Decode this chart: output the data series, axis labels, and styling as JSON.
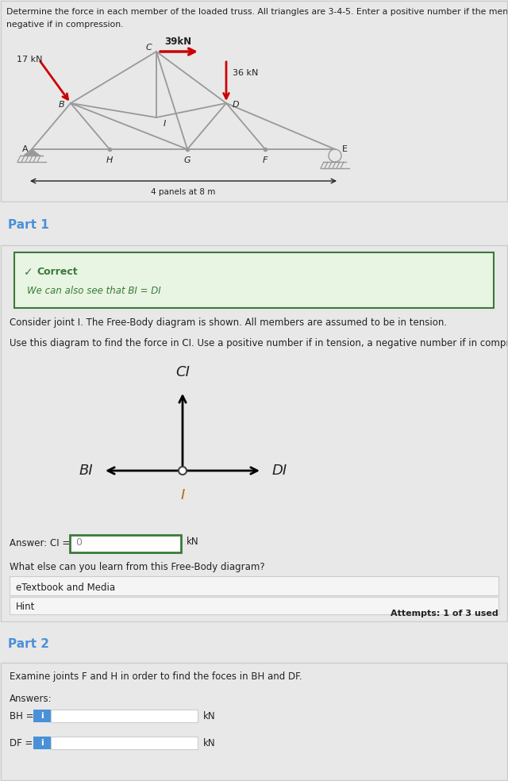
{
  "bg_color": "#e8e8e8",
  "white": "#ffffff",
  "panel_border": "#cccccc",
  "part_header_bg": "#e0e0e0",
  "part_color": "#4a90d9",
  "correct_bg": "#e8f5e2",
  "correct_border": "#3a7a3a",
  "correct_green": "#3a7a3a",
  "input_border": "#3a7a3a",
  "blue_btn": "#4a90d9",
  "dark_text": "#222222",
  "gray_text": "#888888",
  "truss_color": "#888888",
  "truss_line": "#999999",
  "arrow_red": "#cc0000",
  "header_text_line1": "Determine the force in each member of the loaded truss. All triangles are 3-4-5. Enter a positive number if the member is in tension,",
  "header_text_line2": "negative if in compression.",
  "part1_label": "Part 1",
  "correct_label": "Correct",
  "correct_sub": "We can also see that BI = DI",
  "consider_text": "Consider joint I. The Free-Body diagram is shown. All members are assumed to be in tension.",
  "use_text": "Use this diagram to find the force in CI. Use a positive number if in tension, a negative number if in compression.",
  "answer_text": "Answer: CI =",
  "answer_value": "0",
  "kn1": "kN",
  "what_text": "What else can you learn from this Free-Body diagram?",
  "etextbook": "eTextbook and Media",
  "hint": "Hint",
  "attempts": "Attempts: 1 of 3 used",
  "part2_label": "Part 2",
  "examine_text": "Examine joints F and H in order to find the foces in BH and DF.",
  "answers_label": "Answers:",
  "bh_label": "BH =",
  "df_label": "DF =",
  "kn2": "kN",
  "kn3": "kN",
  "load1_label": "17 kN",
  "load2_label": "39kN",
  "load3_label": "36 kN",
  "panels_label": "4 panels at 8 m"
}
